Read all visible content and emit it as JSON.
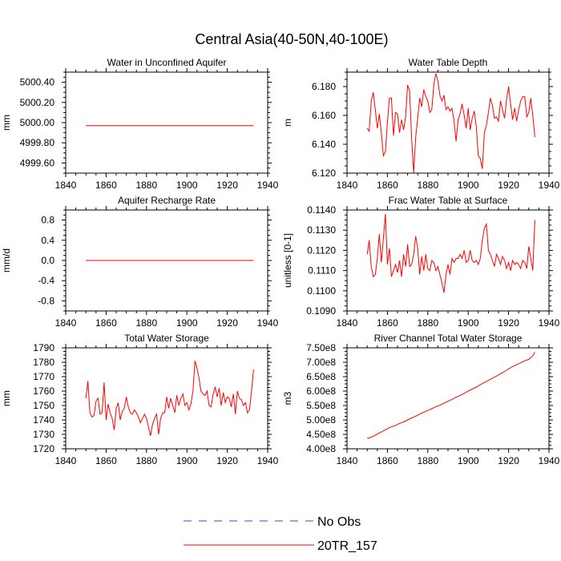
{
  "title": "Central Asia(40-50N,40-100E)",
  "colors": {
    "model": "#ff0000",
    "obs": "#3b3bff",
    "axis": "#000000"
  },
  "legend": {
    "entries": [
      {
        "label": "No Obs",
        "style": "dashed",
        "color": "#3b3bff"
      },
      {
        "label": "20TR_157",
        "style": "solid",
        "color": "#ff0000"
      }
    ]
  },
  "chart_data": [
    {
      "type": "line",
      "title": "Water in Unconfined Aquifer",
      "ylabel": "mm",
      "xlim": [
        1840,
        1940
      ],
      "ylim": [
        4999.5,
        5000.5
      ],
      "xticks": [
        1840,
        1860,
        1880,
        1900,
        1920,
        1940
      ],
      "yticks": [
        4999.6,
        4999.8,
        5000.0,
        5000.2,
        5000.4
      ],
      "ytick_labels": [
        "4999.60",
        "4999.80",
        "5000.00",
        "5000.20",
        "5000.40"
      ],
      "series": [
        {
          "x": [
            1850,
            1933
          ],
          "y": [
            4999.97,
            4999.97
          ]
        }
      ]
    },
    {
      "type": "line",
      "title": "Water Table Depth",
      "ylabel": "m",
      "xlim": [
        1840,
        1940
      ],
      "ylim": [
        6.12,
        6.19
      ],
      "xticks": [
        1840,
        1860,
        1880,
        1900,
        1920,
        1940
      ],
      "yticks": [
        6.12,
        6.14,
        6.16,
        6.18
      ],
      "ytick_labels": [
        "6.120",
        "6.140",
        "6.160",
        "6.180"
      ],
      "series": [
        {
          "x": [
            1850,
            1851,
            1852,
            1853,
            1854,
            1855,
            1856,
            1857,
            1858,
            1859,
            1860,
            1861,
            1862,
            1863,
            1864,
            1865,
            1866,
            1867,
            1868,
            1869,
            1870,
            1871,
            1872,
            1873,
            1874,
            1875,
            1876,
            1877,
            1878,
            1879,
            1880,
            1881,
            1882,
            1883,
            1884,
            1885,
            1886,
            1887,
            1888,
            1889,
            1890,
            1891,
            1892,
            1893,
            1894,
            1895,
            1896,
            1897,
            1898,
            1899,
            1900,
            1901,
            1902,
            1903,
            1904,
            1905,
            1906,
            1907,
            1908,
            1909,
            1910,
            1911,
            1912,
            1913,
            1914,
            1915,
            1916,
            1917,
            1918,
            1919,
            1920,
            1921,
            1922,
            1923,
            1924,
            1925,
            1926,
            1927,
            1928,
            1929,
            1930,
            1931,
            1932,
            1933
          ],
          "y": [
            6.151,
            6.149,
            6.17,
            6.176,
            6.164,
            6.151,
            6.161,
            6.148,
            6.132,
            6.135,
            6.155,
            6.172,
            6.172,
            6.146,
            6.162,
            6.161,
            6.148,
            6.157,
            6.15,
            6.159,
            6.181,
            6.177,
            6.144,
            6.12,
            6.145,
            6.158,
            6.172,
            6.166,
            6.178,
            6.173,
            6.17,
            6.162,
            6.164,
            6.182,
            6.189,
            6.184,
            6.174,
            6.17,
            6.174,
            6.164,
            6.166,
            6.163,
            6.165,
            6.156,
            6.142,
            6.157,
            6.161,
            6.168,
            6.16,
            6.151,
            6.165,
            6.15,
            6.158,
            6.163,
            6.152,
            6.132,
            6.13,
            6.123,
            6.148,
            6.153,
            6.162,
            6.172,
            6.167,
            6.158,
            6.159,
            6.156,
            6.17,
            6.164,
            6.158,
            6.171,
            6.18,
            6.168,
            6.157,
            6.165,
            6.156,
            6.164,
            6.17,
            6.173,
            6.173,
            6.159,
            6.162,
            6.172,
            6.16,
            6.145
          ]
        }
      ]
    },
    {
      "type": "line",
      "title": "Aquifer Recharge Rate",
      "ylabel": "mm/d",
      "xlim": [
        1840,
        1940
      ],
      "ylim": [
        -1.0,
        1.0
      ],
      "xticks": [
        1840,
        1860,
        1880,
        1900,
        1920,
        1940
      ],
      "yticks": [
        -0.8,
        -0.4,
        0.0,
        0.4,
        0.8
      ],
      "ytick_labels": [
        "-0.8",
        "-0.4",
        "0.0",
        "0.4",
        "0.8"
      ],
      "series": [
        {
          "x": [
            1850,
            1933
          ],
          "y": [
            0.0,
            0.0
          ]
        }
      ]
    },
    {
      "type": "line",
      "title": "Frac Water Table at Surface",
      "ylabel": "unitless [0-1]",
      "xlim": [
        1840,
        1940
      ],
      "ylim": [
        0.109,
        0.114
      ],
      "xticks": [
        1840,
        1860,
        1880,
        1900,
        1920,
        1940
      ],
      "yticks": [
        0.109,
        0.11,
        0.111,
        0.112,
        0.113,
        0.114
      ],
      "ytick_labels": [
        "0.1090",
        "0.1100",
        "0.1110",
        "0.1120",
        "0.1130",
        "0.1140"
      ],
      "series": [
        {
          "x": [
            1850,
            1851,
            1852,
            1853,
            1854,
            1855,
            1856,
            1857,
            1858,
            1859,
            1860,
            1861,
            1862,
            1863,
            1864,
            1865,
            1866,
            1867,
            1868,
            1869,
            1870,
            1871,
            1872,
            1873,
            1874,
            1875,
            1876,
            1877,
            1878,
            1879,
            1880,
            1881,
            1882,
            1883,
            1884,
            1885,
            1886,
            1887,
            1888,
            1889,
            1890,
            1891,
            1892,
            1893,
            1894,
            1895,
            1896,
            1897,
            1898,
            1899,
            1900,
            1901,
            1902,
            1903,
            1904,
            1905,
            1906,
            1907,
            1908,
            1909,
            1910,
            1911,
            1912,
            1913,
            1914,
            1915,
            1916,
            1917,
            1918,
            1919,
            1920,
            1921,
            1922,
            1923,
            1924,
            1925,
            1926,
            1927,
            1928,
            1929,
            1930,
            1931,
            1932,
            1933
          ],
          "y": [
            0.1118,
            0.1125,
            0.1112,
            0.1107,
            0.1108,
            0.1116,
            0.1128,
            0.1114,
            0.1126,
            0.1138,
            0.1113,
            0.1121,
            0.1107,
            0.111,
            0.1113,
            0.1109,
            0.1115,
            0.1107,
            0.1118,
            0.1112,
            0.1123,
            0.1112,
            0.1113,
            0.1118,
            0.1127,
            0.1121,
            0.1108,
            0.1117,
            0.111,
            0.1118,
            0.1111,
            0.111,
            0.1115,
            0.1114,
            0.111,
            0.1112,
            0.1108,
            0.1104,
            0.1099,
            0.1108,
            0.1113,
            0.1108,
            0.1116,
            0.1114,
            0.1116,
            0.1116,
            0.1118,
            0.1116,
            0.112,
            0.1114,
            0.1115,
            0.112,
            0.1115,
            0.1114,
            0.1115,
            0.1113,
            0.1116,
            0.1125,
            0.1131,
            0.1133,
            0.112,
            0.1118,
            0.1115,
            0.1112,
            0.1118,
            0.1116,
            0.1113,
            0.1117,
            0.1115,
            0.1111,
            0.1114,
            0.111,
            0.1115,
            0.1113,
            0.1114,
            0.1113,
            0.1111,
            0.1115,
            0.1114,
            0.1111,
            0.1122,
            0.1116,
            0.111,
            0.1135
          ]
        }
      ]
    },
    {
      "type": "line",
      "title": "Total Water Storage",
      "ylabel": "mm",
      "xlim": [
        1840,
        1940
      ],
      "ylim": [
        1720,
        1790
      ],
      "xticks": [
        1840,
        1860,
        1880,
        1900,
        1920,
        1940
      ],
      "yticks": [
        1720,
        1730,
        1740,
        1750,
        1760,
        1770,
        1780,
        1790
      ],
      "ytick_labels": [
        "1720",
        "1730",
        "1740",
        "1750",
        "1760",
        "1770",
        "1780",
        "1790"
      ],
      "series": [
        {
          "x": [
            1850,
            1851,
            1852,
            1853,
            1854,
            1855,
            1856,
            1857,
            1858,
            1859,
            1860,
            1861,
            1862,
            1863,
            1864,
            1865,
            1866,
            1867,
            1868,
            1869,
            1870,
            1871,
            1872,
            1873,
            1874,
            1875,
            1876,
            1877,
            1878,
            1879,
            1880,
            1881,
            1882,
            1883,
            1884,
            1885,
            1886,
            1887,
            1888,
            1889,
            1890,
            1891,
            1892,
            1893,
            1894,
            1895,
            1896,
            1897,
            1898,
            1899,
            1900,
            1901,
            1902,
            1903,
            1904,
            1905,
            1906,
            1907,
            1908,
            1909,
            1910,
            1911,
            1912,
            1913,
            1914,
            1915,
            1916,
            1917,
            1918,
            1919,
            1920,
            1921,
            1922,
            1923,
            1924,
            1925,
            1926,
            1927,
            1928,
            1929,
            1930,
            1931,
            1932,
            1933
          ],
          "y": [
            1755,
            1767,
            1745,
            1742,
            1743,
            1753,
            1755,
            1744,
            1745,
            1766,
            1740,
            1751,
            1745,
            1741,
            1733,
            1748,
            1752,
            1740,
            1746,
            1748,
            1756,
            1749,
            1745,
            1744,
            1747,
            1745,
            1742,
            1738,
            1741,
            1744,
            1741,
            1735,
            1729,
            1737,
            1741,
            1744,
            1730,
            1741,
            1745,
            1745,
            1756,
            1748,
            1755,
            1750,
            1745,
            1757,
            1750,
            1755,
            1758,
            1750,
            1752,
            1747,
            1751,
            1760,
            1781,
            1776,
            1769,
            1760,
            1758,
            1757,
            1760,
            1750,
            1749,
            1758,
            1763,
            1756,
            1762,
            1750,
            1759,
            1752,
            1756,
            1755,
            1749,
            1758,
            1744,
            1760,
            1755,
            1754,
            1750,
            1752,
            1745,
            1747,
            1760,
            1775
          ]
        }
      ]
    },
    {
      "type": "line",
      "title": "River Channel Total Water Storage",
      "ylabel": "m3",
      "xlim": [
        1840,
        1940
      ],
      "ylim": [
        400000000,
        750000000
      ],
      "xticks": [
        1840,
        1860,
        1880,
        1900,
        1920,
        1940
      ],
      "yticks": [
        400000000,
        450000000,
        500000000,
        550000000,
        600000000,
        650000000,
        700000000,
        750000000
      ],
      "ytick_labels": [
        "4.00e8",
        "4.50e8",
        "5.00e8",
        "5.50e8",
        "6.00e8",
        "6.50e8",
        "7.00e8",
        "7.50e8"
      ],
      "series": [
        {
          "x": [
            1850,
            1852,
            1854,
            1856,
            1858,
            1860,
            1862,
            1864,
            1866,
            1868,
            1870,
            1872,
            1874,
            1876,
            1878,
            1880,
            1882,
            1884,
            1886,
            1888,
            1890,
            1892,
            1894,
            1896,
            1898,
            1900,
            1902,
            1904,
            1906,
            1908,
            1910,
            1912,
            1914,
            1916,
            1918,
            1920,
            1922,
            1924,
            1926,
            1928,
            1930,
            1932,
            1933
          ],
          "y": [
            436000000,
            440000000,
            447000000,
            455000000,
            462000000,
            470000000,
            476000000,
            481000000,
            488000000,
            493000000,
            500000000,
            507000000,
            513000000,
            520000000,
            527000000,
            533000000,
            539000000,
            546000000,
            551000000,
            558000000,
            565000000,
            571000000,
            579000000,
            585000000,
            592000000,
            600000000,
            607000000,
            614000000,
            622000000,
            630000000,
            637000000,
            645000000,
            652000000,
            660000000,
            668000000,
            677000000,
            685000000,
            692000000,
            698000000,
            705000000,
            710000000,
            722000000,
            735000000
          ]
        }
      ]
    }
  ]
}
